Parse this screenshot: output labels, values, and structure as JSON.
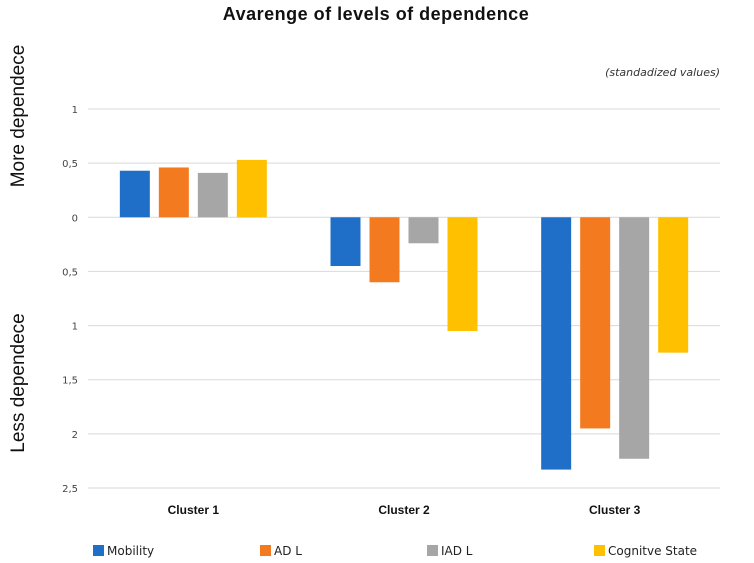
{
  "chart_data": {
    "type": "bar",
    "title": "Avarenge of levels of dependence",
    "subtitle": "(standadized values)",
    "ylabel_top": "More dependece",
    "ylabel_bottom": "Less dependece",
    "categories": [
      "Cluster 1",
      "Cluster 2",
      "Cluster 3"
    ],
    "ylim": [
      -2.5,
      1
    ],
    "yticks": [
      1,
      0.5,
      0,
      -0.5,
      -1,
      -1.5,
      -2,
      -2.5
    ],
    "ytick_labels": [
      "1",
      "0,5",
      "0",
      "0,5",
      "1",
      "1,5",
      "2",
      "2,5"
    ],
    "grid": true,
    "legend_position": "bottom",
    "series": [
      {
        "name": "Mobility",
        "color": "#1f6fc9",
        "values": [
          0.43,
          -0.45,
          -2.33
        ]
      },
      {
        "name": "AD L",
        "color": "#f47a20",
        "values": [
          0.46,
          -0.6,
          -1.95
        ]
      },
      {
        "name": "IAD L",
        "color": "#a6a6a6",
        "values": [
          0.41,
          -0.24,
          -2.23
        ]
      },
      {
        "name": "Cognitve State",
        "color": "#ffc000",
        "values": [
          0.53,
          -1.05,
          -1.25
        ]
      }
    ]
  }
}
